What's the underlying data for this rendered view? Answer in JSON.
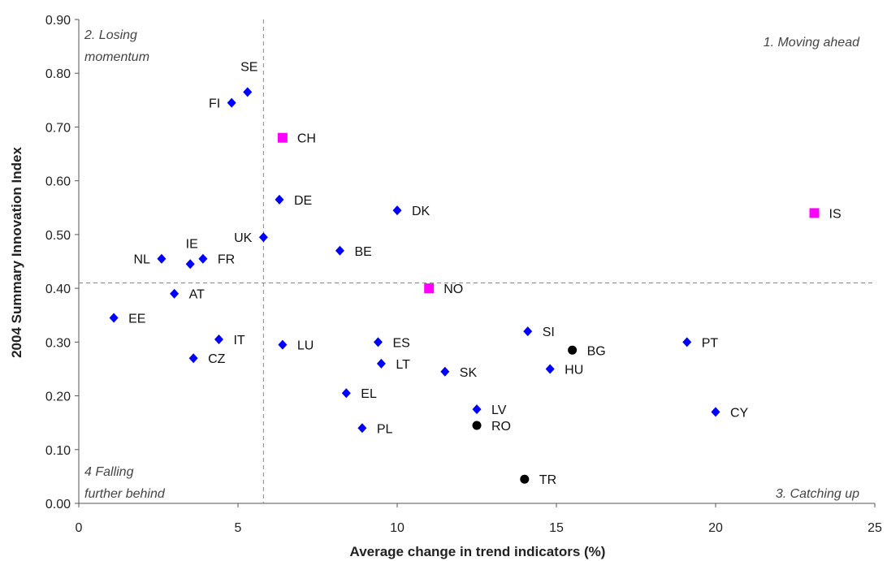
{
  "chart_data": {
    "type": "scatter",
    "xlabel": "Average change in trend indicators (%)",
    "ylabel": "2004 Summary Innovation Index",
    "xlim": [
      0,
      25
    ],
    "ylim": [
      0,
      0.9
    ],
    "x_ticks": [
      "0",
      "5",
      "10",
      "15",
      "20",
      "25"
    ],
    "y_ticks": [
      "0.00",
      "0.10",
      "0.20",
      "0.30",
      "0.40",
      "0.50",
      "0.60",
      "0.70",
      "0.80",
      "0.90"
    ],
    "grid": false,
    "divider_x": 5.8,
    "divider_y": 0.41,
    "quadrant_labels": {
      "q1": [
        "1. Moving ahead"
      ],
      "q2": [
        "2. Losing",
        "momentum"
      ],
      "q3": [
        "3. Catching up"
      ],
      "q4": [
        "4 Falling",
        "further behind"
      ]
    },
    "colors": {
      "diamond": "#0000ff",
      "square": "#ff00ff",
      "circle": "#000000"
    },
    "points": [
      {
        "label": "SE",
        "x": 5.3,
        "y": 0.765,
        "shape": "diamond"
      },
      {
        "label": "FI",
        "x": 4.8,
        "y": 0.745,
        "shape": "diamond"
      },
      {
        "label": "CH",
        "x": 6.4,
        "y": 0.68,
        "shape": "square"
      },
      {
        "label": "DE",
        "x": 6.3,
        "y": 0.565,
        "shape": "diamond"
      },
      {
        "label": "DK",
        "x": 10.0,
        "y": 0.545,
        "shape": "diamond"
      },
      {
        "label": "IS",
        "x": 23.1,
        "y": 0.54,
        "shape": "square"
      },
      {
        "label": "UK",
        "x": 5.8,
        "y": 0.495,
        "shape": "diamond"
      },
      {
        "label": "BE",
        "x": 8.2,
        "y": 0.47,
        "shape": "diamond"
      },
      {
        "label": "IE",
        "x": 3.5,
        "y": 0.445,
        "shape": "diamond"
      },
      {
        "label": "NL",
        "x": 2.6,
        "y": 0.455,
        "shape": "diamond"
      },
      {
        "label": "FR",
        "x": 3.9,
        "y": 0.455,
        "shape": "diamond"
      },
      {
        "label": "NO",
        "x": 11.0,
        "y": 0.4,
        "shape": "square"
      },
      {
        "label": "AT",
        "x": 3.0,
        "y": 0.39,
        "shape": "diamond"
      },
      {
        "label": "EE",
        "x": 1.1,
        "y": 0.345,
        "shape": "diamond"
      },
      {
        "label": "SI",
        "x": 14.1,
        "y": 0.32,
        "shape": "diamond"
      },
      {
        "label": "IT",
        "x": 4.4,
        "y": 0.305,
        "shape": "diamond"
      },
      {
        "label": "ES",
        "x": 9.4,
        "y": 0.3,
        "shape": "diamond"
      },
      {
        "label": "PT",
        "x": 19.1,
        "y": 0.3,
        "shape": "diamond"
      },
      {
        "label": "LU",
        "x": 6.4,
        "y": 0.295,
        "shape": "diamond"
      },
      {
        "label": "BG",
        "x": 15.5,
        "y": 0.285,
        "shape": "circle"
      },
      {
        "label": "CZ",
        "x": 3.6,
        "y": 0.27,
        "shape": "diamond"
      },
      {
        "label": "LT",
        "x": 9.5,
        "y": 0.26,
        "shape": "diamond"
      },
      {
        "label": "HU",
        "x": 14.8,
        "y": 0.25,
        "shape": "diamond"
      },
      {
        "label": "SK",
        "x": 11.5,
        "y": 0.245,
        "shape": "diamond"
      },
      {
        "label": "EL",
        "x": 8.4,
        "y": 0.205,
        "shape": "diamond"
      },
      {
        "label": "LV",
        "x": 12.5,
        "y": 0.175,
        "shape": "diamond"
      },
      {
        "label": "CY",
        "x": 20.0,
        "y": 0.17,
        "shape": "diamond"
      },
      {
        "label": "RO",
        "x": 12.5,
        "y": 0.145,
        "shape": "circle"
      },
      {
        "label": "PL",
        "x": 8.9,
        "y": 0.14,
        "shape": "diamond"
      },
      {
        "label": "TR",
        "x": 14.0,
        "y": 0.045,
        "shape": "circle"
      }
    ]
  }
}
